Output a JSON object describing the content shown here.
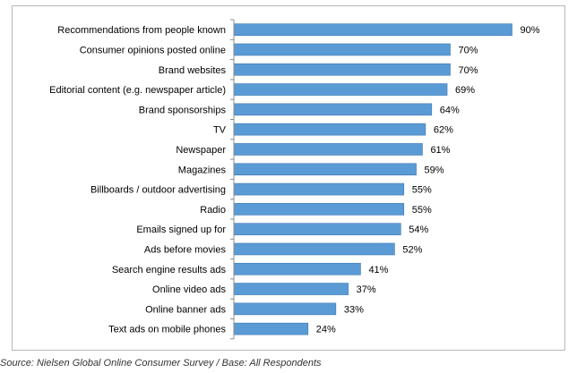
{
  "chart_data": {
    "type": "bar",
    "orientation": "horizontal",
    "categories": [
      "Recommendations from people known",
      "Consumer opinions posted online",
      "Brand websites",
      "Editorial content (e.g. newspaper article)",
      "Brand sponsorships",
      "TV",
      "Newspaper",
      "Magazines",
      "Billboards / outdoor advertising",
      "Radio",
      "Emails signed up for",
      "Ads before movies",
      "Search engine results ads",
      "Online video ads",
      "Online banner ads",
      "Text ads on mobile phones"
    ],
    "values": [
      90,
      70,
      70,
      69,
      64,
      62,
      61,
      59,
      55,
      55,
      54,
      52,
      41,
      37,
      33,
      24
    ],
    "value_labels": [
      "90%",
      "70%",
      "70%",
      "69%",
      "64%",
      "62%",
      "61%",
      "59%",
      "55%",
      "55%",
      "54%",
      "52%",
      "41%",
      "37%",
      "33%",
      "24%"
    ],
    "xlim": [
      0,
      100
    ],
    "grid": false,
    "legend": "none",
    "bar_color": "#5b9bd5",
    "bar_edge_color": "#3a78b5"
  },
  "footer": {
    "source": "Source: Nielsen Global Online Consumer Survey  / Base: All Respondents"
  }
}
